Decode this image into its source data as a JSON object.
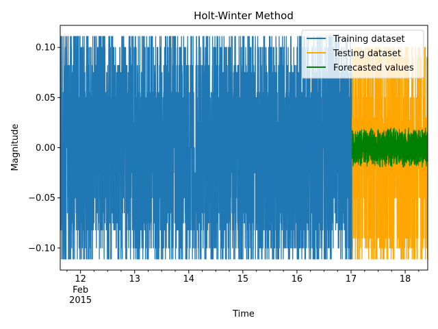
{
  "chart_data": {
    "type": "line",
    "title": "Holt-Winter Method",
    "xlabel": "Time",
    "ylabel": "Magnitude",
    "x_range": [
      "2015-02-11T15:00",
      "2015-02-18T10:00"
    ],
    "ylim": [
      -0.122,
      0.122
    ],
    "x_ticks": [
      {
        "date": "2015-02-12",
        "label": "12",
        "sub": [
          "Feb",
          "2015"
        ]
      },
      {
        "date": "2015-02-13",
        "label": "13"
      },
      {
        "date": "2015-02-14",
        "label": "14"
      },
      {
        "date": "2015-02-15",
        "label": "15"
      },
      {
        "date": "2015-02-16",
        "label": "16"
      },
      {
        "date": "2015-02-17",
        "label": "17"
      },
      {
        "date": "2015-02-18",
        "label": "18"
      }
    ],
    "y_ticks": [
      {
        "value": 0.1,
        "label": "0.10"
      },
      {
        "value": 0.05,
        "label": "0.05"
      },
      {
        "value": 0.0,
        "label": "0.00"
      },
      {
        "value": -0.05,
        "label": "−0.05"
      },
      {
        "value": -0.1,
        "label": "−0.10"
      }
    ],
    "legend_position": "top-right",
    "grid": false,
    "series": [
      {
        "name": "Training dataset",
        "color": "#1f77b4",
        "start": "2015-02-11T15:00",
        "end": "2015-02-17T00:30",
        "amplitude": [
          -0.111,
          0.111
        ]
      },
      {
        "name": "Testing dataset",
        "color": "#ffa500",
        "start": "2015-02-17T00:30",
        "end": "2015-02-18T10:00",
        "amplitude": [
          -0.111,
          0.1
        ]
      },
      {
        "name": "Forecasted values",
        "color": "#008000",
        "start": "2015-02-17T00:30",
        "end": "2015-02-18T10:00",
        "amplitude": [
          -0.02,
          0.02
        ]
      }
    ]
  }
}
